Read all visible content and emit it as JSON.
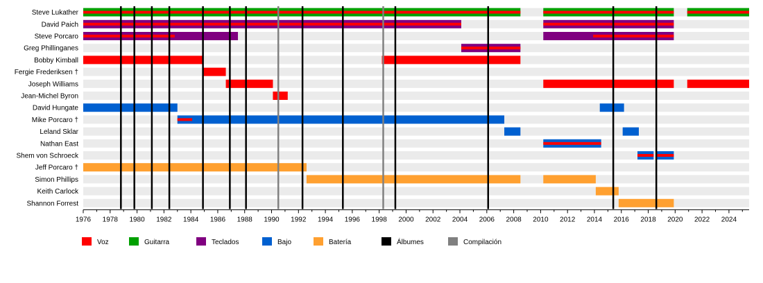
{
  "chart_data": {
    "type": "timeline",
    "xlim": [
      1976,
      2025.5
    ],
    "x_ticks": [
      1976,
      1978,
      1980,
      1982,
      1984,
      1986,
      1988,
      1990,
      1992,
      1994,
      1996,
      1998,
      2000,
      2002,
      2004,
      2006,
      2008,
      2010,
      2012,
      2014,
      2016,
      2018,
      2020,
      2022,
      2024
    ],
    "colors": {
      "voz": "#ff0000",
      "guitarra": "#00a000",
      "teclados": "#800080",
      "bajo": "#0060d0",
      "bateria": "#ffa030",
      "albumes": "#000000",
      "compilacion": "#808080"
    },
    "legend": [
      {
        "key": "voz",
        "label": "Voz"
      },
      {
        "key": "guitarra",
        "label": "Guitarra"
      },
      {
        "key": "teclados",
        "label": "Teclados"
      },
      {
        "key": "bajo",
        "label": "Bajo"
      },
      {
        "key": "bateria",
        "label": "Batería"
      },
      {
        "key": "albumes",
        "label": "Álbumes"
      },
      {
        "key": "compilacion",
        "label": "Compilación"
      }
    ],
    "members": [
      {
        "name": "Steve Lukather",
        "bars": [
          {
            "role": "guitarra",
            "start": 1976,
            "end": 2008.5
          },
          {
            "role": "guitarra",
            "start": 2010.2,
            "end": 2019.9
          },
          {
            "role": "guitarra",
            "start": 2020.9,
            "end": 2025.5
          }
        ],
        "stripes": [
          {
            "role": "voz",
            "start": 1976,
            "end": 2008.5
          },
          {
            "role": "voz",
            "start": 2010.2,
            "end": 2019.9
          },
          {
            "role": "voz",
            "start": 2020.9,
            "end": 2025.5
          }
        ]
      },
      {
        "name": "David Paich",
        "bars": [
          {
            "role": "teclados",
            "start": 1976,
            "end": 2004.1
          },
          {
            "role": "teclados",
            "start": 2010.2,
            "end": 2019.9
          }
        ],
        "stripes": [
          {
            "role": "voz",
            "start": 1976,
            "end": 2004.1
          },
          {
            "role": "voz",
            "start": 2010.2,
            "end": 2019.9
          }
        ]
      },
      {
        "name": "Steve Porcaro",
        "bars": [
          {
            "role": "teclados",
            "start": 1976,
            "end": 1987.5
          },
          {
            "role": "teclados",
            "start": 2010.2,
            "end": 2019.9
          }
        ],
        "stripes": [
          {
            "role": "voz",
            "start": 1976,
            "end": 1982.8
          },
          {
            "role": "voz",
            "start": 2013.9,
            "end": 2019.9
          }
        ]
      },
      {
        "name": "Greg Phillinganes",
        "bars": [
          {
            "role": "teclados",
            "start": 2004.1,
            "end": 2008.5
          }
        ],
        "stripes": [
          {
            "role": "voz",
            "start": 2004.1,
            "end": 2008.5
          }
        ]
      },
      {
        "name": "Bobby Kimball",
        "bars": [
          {
            "role": "voz",
            "start": 1976,
            "end": 1984.9
          },
          {
            "role": "voz",
            "start": 1998.2,
            "end": 2008.5
          }
        ],
        "stripes": []
      },
      {
        "name": "Fergie Frederiksen †",
        "bars": [
          {
            "role": "voz",
            "start": 1984.9,
            "end": 1986.6
          }
        ],
        "stripes": []
      },
      {
        "name": "Joseph Williams",
        "bars": [
          {
            "role": "voz",
            "start": 1986.6,
            "end": 1990.1
          },
          {
            "role": "voz",
            "start": 2010.2,
            "end": 2019.9
          },
          {
            "role": "voz",
            "start": 2020.9,
            "end": 2025.5
          }
        ],
        "stripes": []
      },
      {
        "name": "Jean-Michel Byron",
        "bars": [
          {
            "role": "voz",
            "start": 1990.1,
            "end": 1991.2
          }
        ],
        "stripes": []
      },
      {
        "name": "David Hungate",
        "bars": [
          {
            "role": "bajo",
            "start": 1976,
            "end": 1983
          },
          {
            "role": "bajo",
            "start": 2014.4,
            "end": 2016.2
          }
        ],
        "stripes": []
      },
      {
        "name": "Mike Porcaro †",
        "bars": [
          {
            "role": "bajo",
            "start": 1983,
            "end": 2007.3
          }
        ],
        "stripes": [
          {
            "role": "voz",
            "start": 1983,
            "end": 1984.1
          }
        ]
      },
      {
        "name": "Leland Sklar",
        "bars": [
          {
            "role": "bajo",
            "start": 2007.3,
            "end": 2008.5
          },
          {
            "role": "bajo",
            "start": 2016.1,
            "end": 2017.3
          }
        ],
        "stripes": []
      },
      {
        "name": "Nathan East",
        "bars": [
          {
            "role": "bajo",
            "start": 2010.2,
            "end": 2014.5
          }
        ],
        "stripes": [
          {
            "role": "voz",
            "start": 2010.2,
            "end": 2014.5
          }
        ]
      },
      {
        "name": "Shem von Schroeck",
        "bars": [
          {
            "role": "bajo",
            "start": 2017.2,
            "end": 2018.4
          },
          {
            "role": "bajo",
            "start": 2018.6,
            "end": 2019.9
          }
        ],
        "stripes": [
          {
            "role": "voz",
            "start": 2017.2,
            "end": 2018.4
          },
          {
            "role": "voz",
            "start": 2018.6,
            "end": 2019.9
          }
        ]
      },
      {
        "name": "Jeff Porcaro †",
        "bars": [
          {
            "role": "bateria",
            "start": 1976,
            "end": 1992.6
          }
        ],
        "stripes": []
      },
      {
        "name": "Simon Phillips",
        "bars": [
          {
            "role": "bateria",
            "start": 1992.6,
            "end": 2008.5
          },
          {
            "role": "bateria",
            "start": 2010.2,
            "end": 2014.1
          }
        ],
        "stripes": []
      },
      {
        "name": "Keith Carlock",
        "bars": [
          {
            "role": "bateria",
            "start": 2014.1,
            "end": 2015.8
          }
        ],
        "stripes": []
      },
      {
        "name": "Shannon Forrest",
        "bars": [
          {
            "role": "bateria",
            "start": 2015.8,
            "end": 2018.6
          },
          {
            "role": "bateria",
            "start": 2018.6,
            "end": 2019.9
          }
        ],
        "stripes": []
      }
    ],
    "album_lines": [
      1978.8,
      1979.8,
      1981.1,
      1982.4,
      1984.9,
      1986.9,
      1988.1,
      1992.3,
      1995.3,
      1999.2,
      2006.1,
      2015.4,
      2018.6
    ],
    "compilation_lines": [
      1990.5,
      1998.3
    ]
  }
}
